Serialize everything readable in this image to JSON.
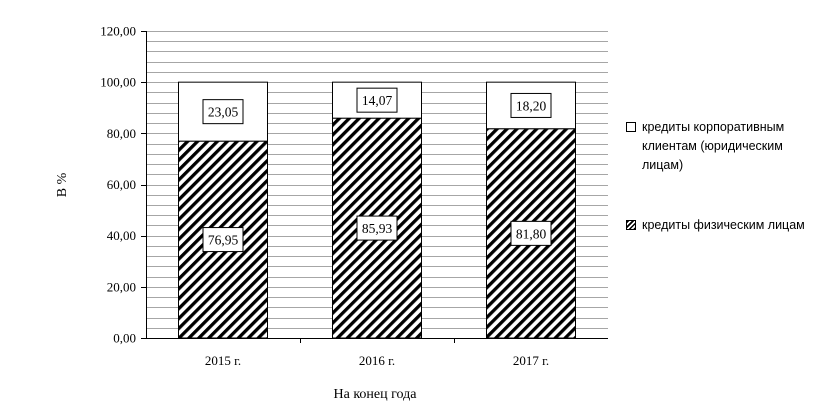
{
  "chart_data": {
    "type": "bar",
    "stacked": true,
    "categories": [
      "2015 г.",
      "2016 г.",
      "2017 г."
    ],
    "series": [
      {
        "name": "кредиты физическим лицам",
        "values": [
          76.95,
          85.93,
          81.8
        ],
        "labels": [
          "76,95",
          "85,93",
          "81,80"
        ],
        "fill": "hatch"
      },
      {
        "name": "кредиты корпоративным клиентам (юридическим лицам)",
        "values": [
          23.05,
          14.07,
          18.2
        ],
        "labels": [
          "23,05",
          "14,07",
          "18,20"
        ],
        "fill": "white"
      }
    ],
    "yticks": [
      "0,00",
      "20,00",
      "40,00",
      "60,00",
      "80,00",
      "100,00",
      "120,00"
    ],
    "ylim": [
      0,
      120
    ],
    "grid": true,
    "xlabel": "На конец года",
    "ylabel": "В %",
    "legend_position": "right"
  },
  "legend": {
    "items": [
      {
        "label": "кредиты корпоративным клиентам (юридическим лицам)"
      },
      {
        "label": "кредиты физическим лицам"
      }
    ]
  },
  "colors": {
    "grid": "#a6a6a6",
    "bar_edge": "#000000",
    "background": "#ffffff"
  }
}
